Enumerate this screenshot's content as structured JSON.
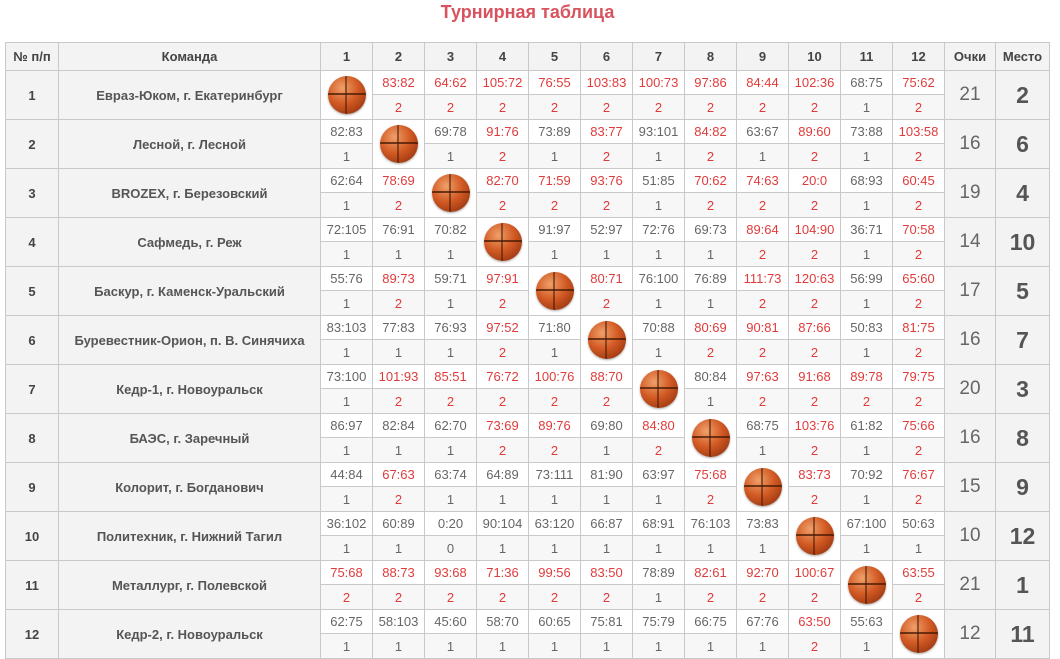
{
  "title": "Турнирная таблица",
  "icons": {
    "self_match": "basketball-icon"
  },
  "colors": {
    "title": "#d9535f",
    "win": "#e03b3b",
    "loss": "#666666"
  },
  "headers": {
    "num": "№ п/п",
    "team": "Команда",
    "rounds": [
      "1",
      "2",
      "3",
      "4",
      "5",
      "6",
      "7",
      "8",
      "9",
      "10",
      "11",
      "12"
    ],
    "points": "Очки",
    "place": "Место"
  },
  "teams": [
    {
      "num": "1",
      "name": "Евраз-Юком, г. Екатеринбург",
      "points": "21",
      "place": "2",
      "results": [
        null,
        {
          "score": "83:82",
          "pts": "2"
        },
        {
          "score": "64:62",
          "pts": "2"
        },
        {
          "score": "105:72",
          "pts": "2"
        },
        {
          "score": "76:55",
          "pts": "2"
        },
        {
          "score": "103:83",
          "pts": "2"
        },
        {
          "score": "100:73",
          "pts": "2"
        },
        {
          "score": "97:86",
          "pts": "2"
        },
        {
          "score": "84:44",
          "pts": "2"
        },
        {
          "score": "102:36",
          "pts": "2"
        },
        {
          "score": "68:75",
          "pts": "1"
        },
        {
          "score": "75:62",
          "pts": "2"
        }
      ]
    },
    {
      "num": "2",
      "name": "Лесной, г. Лесной",
      "points": "16",
      "place": "6",
      "results": [
        {
          "score": "82:83",
          "pts": "1"
        },
        null,
        {
          "score": "69:78",
          "pts": "1"
        },
        {
          "score": "91:76",
          "pts": "2"
        },
        {
          "score": "73:89",
          "pts": "1"
        },
        {
          "score": "83:77",
          "pts": "2"
        },
        {
          "score": "93:101",
          "pts": "1"
        },
        {
          "score": "84:82",
          "pts": "2"
        },
        {
          "score": "63:67",
          "pts": "1"
        },
        {
          "score": "89:60",
          "pts": "2"
        },
        {
          "score": "73:88",
          "pts": "1"
        },
        {
          "score": "103:58",
          "pts": "2"
        }
      ]
    },
    {
      "num": "3",
      "name": "BROZEX, г. Березовский",
      "points": "19",
      "place": "4",
      "results": [
        {
          "score": "62:64",
          "pts": "1"
        },
        {
          "score": "78:69",
          "pts": "2"
        },
        null,
        {
          "score": "82:70",
          "pts": "2"
        },
        {
          "score": "71:59",
          "pts": "2"
        },
        {
          "score": "93:76",
          "pts": "2"
        },
        {
          "score": "51:85",
          "pts": "1"
        },
        {
          "score": "70:62",
          "pts": "2"
        },
        {
          "score": "74:63",
          "pts": "2"
        },
        {
          "score": "20:0",
          "pts": "2"
        },
        {
          "score": "68:93",
          "pts": "1"
        },
        {
          "score": "60:45",
          "pts": "2"
        }
      ]
    },
    {
      "num": "4",
      "name": "Сафмедь, г. Реж",
      "points": "14",
      "place": "10",
      "results": [
        {
          "score": "72:105",
          "pts": "1"
        },
        {
          "score": "76:91",
          "pts": "1"
        },
        {
          "score": "70:82",
          "pts": "1"
        },
        null,
        {
          "score": "91:97",
          "pts": "1"
        },
        {
          "score": "52:97",
          "pts": "1"
        },
        {
          "score": "72:76",
          "pts": "1"
        },
        {
          "score": "69:73",
          "pts": "1"
        },
        {
          "score": "89:64",
          "pts": "2"
        },
        {
          "score": "104:90",
          "pts": "2"
        },
        {
          "score": "36:71",
          "pts": "1"
        },
        {
          "score": "70:58",
          "pts": "2"
        }
      ]
    },
    {
      "num": "5",
      "name": "Баскур, г. Каменск-Уральский",
      "points": "17",
      "place": "5",
      "results": [
        {
          "score": "55:76",
          "pts": "1"
        },
        {
          "score": "89:73",
          "pts": "2"
        },
        {
          "score": "59:71",
          "pts": "1"
        },
        {
          "score": "97:91",
          "pts": "2"
        },
        null,
        {
          "score": "80:71",
          "pts": "2"
        },
        {
          "score": "76:100",
          "pts": "1"
        },
        {
          "score": "76:89",
          "pts": "1"
        },
        {
          "score": "111:73",
          "pts": "2"
        },
        {
          "score": "120:63",
          "pts": "2"
        },
        {
          "score": "56:99",
          "pts": "1"
        },
        {
          "score": "65:60",
          "pts": "2"
        }
      ]
    },
    {
      "num": "6",
      "name": "Буревестник-Орион, п. В. Синячиха",
      "points": "16",
      "place": "7",
      "results": [
        {
          "score": "83:103",
          "pts": "1"
        },
        {
          "score": "77:83",
          "pts": "1"
        },
        {
          "score": "76:93",
          "pts": "1"
        },
        {
          "score": "97:52",
          "pts": "2"
        },
        {
          "score": "71:80",
          "pts": "1"
        },
        null,
        {
          "score": "70:88",
          "pts": "1"
        },
        {
          "score": "80:69",
          "pts": "2"
        },
        {
          "score": "90:81",
          "pts": "2"
        },
        {
          "score": "87:66",
          "pts": "2"
        },
        {
          "score": "50:83",
          "pts": "1"
        },
        {
          "score": "81:75",
          "pts": "2"
        }
      ]
    },
    {
      "num": "7",
      "name": "Кедр-1, г. Новоуральск",
      "points": "20",
      "place": "3",
      "results": [
        {
          "score": "73:100",
          "pts": "1"
        },
        {
          "score": "101:93",
          "pts": "2"
        },
        {
          "score": "85:51",
          "pts": "2"
        },
        {
          "score": "76:72",
          "pts": "2"
        },
        {
          "score": "100:76",
          "pts": "2"
        },
        {
          "score": "88:70",
          "pts": "2"
        },
        null,
        {
          "score": "80:84",
          "pts": "1"
        },
        {
          "score": "97:63",
          "pts": "2"
        },
        {
          "score": "91:68",
          "pts": "2"
        },
        {
          "score": "89:78",
          "pts": "2"
        },
        {
          "score": "79:75",
          "pts": "2"
        }
      ]
    },
    {
      "num": "8",
      "name": "БАЭС, г. Заречный",
      "points": "16",
      "place": "8",
      "results": [
        {
          "score": "86:97",
          "pts": "1"
        },
        {
          "score": "82:84",
          "pts": "1"
        },
        {
          "score": "62:70",
          "pts": "1"
        },
        {
          "score": "73:69",
          "pts": "2"
        },
        {
          "score": "89:76",
          "pts": "2"
        },
        {
          "score": "69:80",
          "pts": "1"
        },
        {
          "score": "84:80",
          "pts": "2"
        },
        null,
        {
          "score": "68:75",
          "pts": "1"
        },
        {
          "score": "103:76",
          "pts": "2"
        },
        {
          "score": "61:82",
          "pts": "1"
        },
        {
          "score": "75:66",
          "pts": "2"
        }
      ]
    },
    {
      "num": "9",
      "name": "Колорит, г. Богданович",
      "points": "15",
      "place": "9",
      "results": [
        {
          "score": "44:84",
          "pts": "1"
        },
        {
          "score": "67:63",
          "pts": "2"
        },
        {
          "score": "63:74",
          "pts": "1"
        },
        {
          "score": "64:89",
          "pts": "1"
        },
        {
          "score": "73:111",
          "pts": "1"
        },
        {
          "score": "81:90",
          "pts": "1"
        },
        {
          "score": "63:97",
          "pts": "1"
        },
        {
          "score": "75:68",
          "pts": "2"
        },
        null,
        {
          "score": "83:73",
          "pts": "2"
        },
        {
          "score": "70:92",
          "pts": "1"
        },
        {
          "score": "76:67",
          "pts": "2"
        }
      ]
    },
    {
      "num": "10",
      "name": "Политехник, г. Нижний Тагил",
      "points": "10",
      "place": "12",
      "results": [
        {
          "score": "36:102",
          "pts": "1"
        },
        {
          "score": "60:89",
          "pts": "1"
        },
        {
          "score": "0:20",
          "pts": "0"
        },
        {
          "score": "90:104",
          "pts": "1"
        },
        {
          "score": "63:120",
          "pts": "1"
        },
        {
          "score": "66:87",
          "pts": "1"
        },
        {
          "score": "68:91",
          "pts": "1"
        },
        {
          "score": "76:103",
          "pts": "1"
        },
        {
          "score": "73:83",
          "pts": "1"
        },
        null,
        {
          "score": "67:100",
          "pts": "1"
        },
        {
          "score": "50:63",
          "pts": "1"
        }
      ]
    },
    {
      "num": "11",
      "name": "Металлург, г. Полевской",
      "points": "21",
      "place": "1",
      "results": [
        {
          "score": "75:68",
          "pts": "2"
        },
        {
          "score": "88:73",
          "pts": "2"
        },
        {
          "score": "93:68",
          "pts": "2"
        },
        {
          "score": "71:36",
          "pts": "2"
        },
        {
          "score": "99:56",
          "pts": "2"
        },
        {
          "score": "83:50",
          "pts": "2"
        },
        {
          "score": "78:89",
          "pts": "1"
        },
        {
          "score": "82:61",
          "pts": "2"
        },
        {
          "score": "92:70",
          "pts": "2"
        },
        {
          "score": "100:67",
          "pts": "2"
        },
        null,
        {
          "score": "63:55",
          "pts": "2"
        }
      ]
    },
    {
      "num": "12",
      "name": "Кедр-2, г. Новоуральск",
      "points": "12",
      "place": "11",
      "results": [
        {
          "score": "62:75",
          "pts": "1"
        },
        {
          "score": "58:103",
          "pts": "1"
        },
        {
          "score": "45:60",
          "pts": "1"
        },
        {
          "score": "58:70",
          "pts": "1"
        },
        {
          "score": "60:65",
          "pts": "1"
        },
        {
          "score": "75:81",
          "pts": "1"
        },
        {
          "score": "75:79",
          "pts": "1"
        },
        {
          "score": "66:75",
          "pts": "1"
        },
        {
          "score": "67:76",
          "pts": "1"
        },
        {
          "score": "63:50",
          "pts": "2"
        },
        {
          "score": "55:63",
          "pts": "1"
        },
        null
      ]
    }
  ]
}
